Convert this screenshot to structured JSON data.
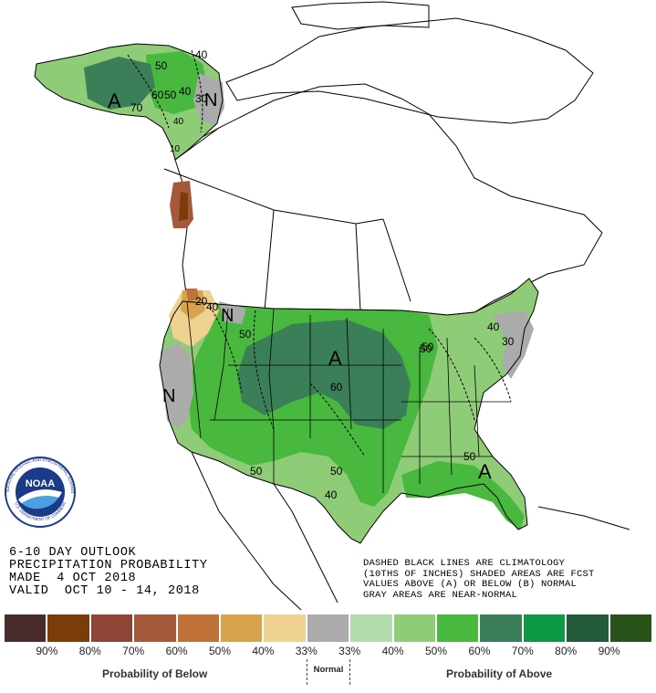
{
  "header": {
    "line1": "6-10 DAY OUTLOOK",
    "line2": "PRECIPITATION PROBABILITY",
    "line3": "MADE  4 OCT 2018",
    "line4": "VALID  OCT 10 - 14, 2018"
  },
  "note": {
    "line1": "DASHED BLACK LINES ARE CLIMATOLOGY",
    "line2": "(10THS OF INCHES) SHADED AREAS ARE FCST",
    "line3": "VALUES ABOVE (A) OR BELOW (B) NORMAL",
    "line4": "GRAY AREAS ARE NEAR-NORMAL"
  },
  "logo": {
    "text": "NOAA",
    "ring_text": "NATIONAL OCEANIC AND ATMOSPHERIC ADMINISTRATION",
    "ring_text_bottom": "U.S. DEPARTMENT OF COMMERCE"
  },
  "legend": {
    "colors": [
      "#4a2b2b",
      "#7a3c08",
      "#8d4535",
      "#a6583a",
      "#c07239",
      "#d7a44c",
      "#efd292",
      "#ababab",
      "#b4dbac",
      "#8fcc78",
      "#48b83e",
      "#3a7f57",
      "#0d9944",
      "#235a38",
      "#29521a"
    ],
    "labels": [
      "90%",
      "80%",
      "70%",
      "60%",
      "50%",
      "40%",
      "33%",
      "33%",
      "40%",
      "50%",
      "60%",
      "70%",
      "80%",
      "90%"
    ],
    "below_label": "Probability of Below",
    "normal_label": "Normal",
    "above_label": "Probability of Above"
  },
  "map_labels": {
    "alaska": [
      "A",
      "70",
      "60",
      "50",
      "40",
      "50",
      "40",
      "30",
      "N",
      "40",
      "10"
    ],
    "west": [
      "40",
      "20",
      "N",
      "50",
      "N"
    ],
    "center": [
      "A",
      "60",
      "50",
      "50",
      "50",
      "40",
      "A",
      "50"
    ],
    "east": [
      "40",
      "50",
      "30"
    ]
  }
}
